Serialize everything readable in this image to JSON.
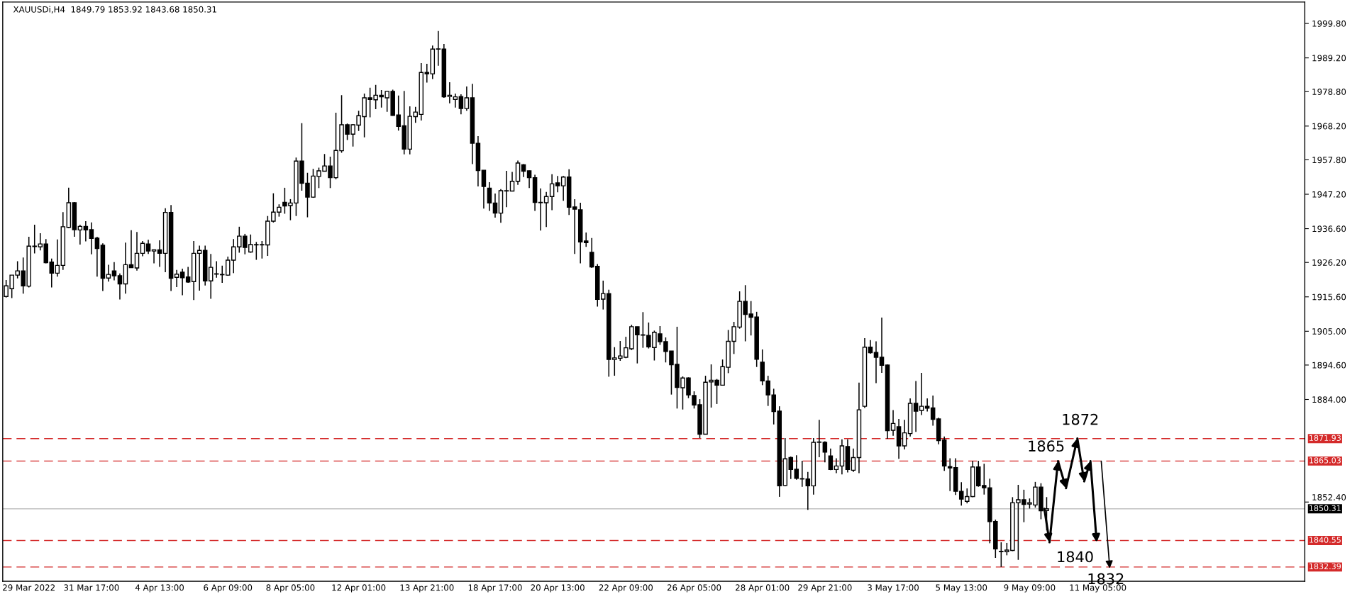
{
  "chart_data": {
    "type": "candlestick",
    "title": "XAUUSDi,H4  1849.79 1853.92 1843.68 1850.31",
    "categories": [
      null,
      null,
      null,
      null,
      "29 Mar 2022",
      null,
      null,
      null,
      null,
      null,
      null,
      null,
      null,
      null,
      null,
      "31 Mar 17:00",
      null,
      null,
      null,
      null,
      null,
      null,
      null,
      null,
      null,
      null,
      null,
      "4 Apr 13:00",
      null,
      null,
      null,
      null,
      null,
      null,
      null,
      null,
      null,
      null,
      null,
      "6 Apr 09:00",
      null,
      null,
      null,
      null,
      null,
      null,
      null,
      null,
      null,
      null,
      "8 Apr 05:00",
      null,
      null,
      null,
      null,
      null,
      null,
      null,
      null,
      null,
      null,
      null,
      "12 Apr 01:00",
      null,
      null,
      null,
      null,
      null,
      null,
      null,
      null,
      null,
      null,
      null,
      "13 Apr 21:00",
      null,
      null,
      null,
      null,
      null,
      null,
      null,
      null,
      null,
      null,
      null,
      "18 Apr 17:00",
      null,
      null,
      null,
      null,
      null,
      null,
      null,
      null,
      null,
      null,
      "20 Apr 13:00",
      null,
      null,
      null,
      null,
      null,
      null,
      null,
      null,
      null,
      null,
      null,
      "22 Apr 09:00",
      null,
      null,
      null,
      null,
      null,
      null,
      null,
      null,
      null,
      null,
      null,
      "26 Apr 05:00",
      null,
      null,
      null,
      null,
      null,
      null,
      null,
      null,
      null,
      null,
      null,
      "28 Apr 01:00",
      null,
      null,
      null,
      null,
      null,
      null,
      null,
      null,
      null,
      null,
      "29 Apr 21:00",
      null,
      null,
      null,
      null,
      null,
      null,
      null,
      null,
      null,
      null,
      null,
      "3 May 17:00",
      null,
      null,
      null,
      null,
      null,
      null,
      null,
      null,
      null,
      null,
      null,
      "5 May 13:00",
      null,
      null,
      null,
      null,
      null,
      null,
      null,
      null,
      null,
      null,
      null,
      "9 May 09:00",
      null,
      null,
      null,
      null,
      null,
      null,
      null,
      null,
      null,
      null,
      null,
      "11 May 05:00",
      null,
      null,
      null,
      null,
      null,
      null,
      null,
      null,
      null,
      null,
      null,
      null,
      null,
      null,
      null,
      null,
      null,
      null,
      null,
      null,
      null,
      null,
      null,
      null,
      null,
      null,
      null,
      null,
      null,
      null,
      null,
      null,
      null,
      null,
      null,
      null
    ],
    "ohlc": [
      [
        1915.7,
        1920.8,
        1915.4,
        1919.0
      ],
      [
        1918.1,
        1922.3,
        1915.2,
        1922.3
      ],
      [
        1922.3,
        1926.6,
        1921.3,
        1923.6
      ],
      [
        1923.6,
        1927.7,
        1916.6,
        1919.0
      ],
      [
        1918.9,
        1934.1,
        1918.5,
        1931.2
      ],
      [
        1931.2,
        1937.8,
        1929.0,
        1931.1
      ],
      [
        1931.0,
        1935.2,
        1929.9,
        1931.9
      ],
      [
        1931.9,
        1933.4,
        1925.9,
        1926.1
      ],
      [
        1926.3,
        1927.4,
        1918.5,
        1922.9
      ],
      [
        1922.9,
        1933.3,
        1921.8,
        1925.3
      ],
      [
        1925.3,
        1941.7,
        1923.9,
        1937.2
      ],
      [
        1937.0,
        1949.2,
        1936.8,
        1944.6
      ],
      [
        1944.6,
        1944.8,
        1934.1,
        1936.3
      ],
      [
        1936.2,
        1937.8,
        1931.7,
        1937.3
      ],
      [
        1937.3,
        1938.9,
        1932.7,
        1936.2
      ],
      [
        1936.3,
        1938.5,
        1928.7,
        1933.6
      ],
      [
        1933.7,
        1934.1,
        1921.8,
        1930.5
      ],
      [
        1931.5,
        1932.1,
        1917.4,
        1921.3
      ],
      [
        1921.4,
        1925.5,
        1920.3,
        1922.5
      ],
      [
        1923.6,
        1926.3,
        1920.7,
        1922.1
      ],
      [
        1922.1,
        1922.8,
        1914.8,
        1919.6
      ],
      [
        1919.6,
        1932.3,
        1916.6,
        1925.5
      ],
      [
        1925.5,
        1936.1,
        1924.6,
        1924.6
      ],
      [
        1924.5,
        1935.6,
        1923.7,
        1929.0
      ],
      [
        1929.0,
        1932.8,
        1928.1,
        1932.1
      ],
      [
        1931.9,
        1933.2,
        1928.8,
        1929.7
      ],
      [
        1929.7,
        1930.1,
        1925.9,
        1930.1
      ],
      [
        1930.1,
        1933.0,
        1924.8,
        1929.0
      ],
      [
        1929.0,
        1942.9,
        1923.2,
        1941.6
      ],
      [
        1941.6,
        1943.9,
        1917.4,
        1921.3
      ],
      [
        1921.6,
        1923.9,
        1918.6,
        1922.6
      ],
      [
        1923.2,
        1924.3,
        1916.1,
        1921.5
      ],
      [
        1921.7,
        1924.8,
        1919.9,
        1920.2
      ],
      [
        1920.3,
        1932.8,
        1914.6,
        1929.0
      ],
      [
        1929.0,
        1931.4,
        1917.5,
        1929.9
      ],
      [
        1929.9,
        1931.4,
        1919.1,
        1920.5
      ],
      [
        1920.5,
        1928.8,
        1915.0,
        1924.7
      ],
      [
        1922.6,
        1926.6,
        1921.5,
        1922.7
      ],
      [
        1922.4,
        1925.2,
        1919.9,
        1922.5
      ],
      [
        1922.3,
        1928.0,
        1922.1,
        1926.9
      ],
      [
        1926.9,
        1933.4,
        1922.9,
        1931.0
      ],
      [
        1931.0,
        1937.2,
        1929.2,
        1934.3
      ],
      [
        1934.3,
        1935.0,
        1928.7,
        1930.8
      ],
      [
        1929.4,
        1934.8,
        1929.2,
        1931.7
      ],
      [
        1931.6,
        1932.5,
        1927.0,
        1931.7
      ],
      [
        1931.7,
        1932.8,
        1927.4,
        1931.6
      ],
      [
        1931.6,
        1940.5,
        1928.2,
        1938.9
      ],
      [
        1938.9,
        1947.5,
        1938.5,
        1941.7
      ],
      [
        1941.7,
        1944.1,
        1940.3,
        1943.2
      ],
      [
        1944.7,
        1949.2,
        1941.2,
        1943.6
      ],
      [
        1943.7,
        1945.7,
        1939.2,
        1944.5
      ],
      [
        1944.5,
        1958.5,
        1940.5,
        1957.4
      ],
      [
        1957.4,
        1969.1,
        1948.3,
        1950.6
      ],
      [
        1950.6,
        1953.8,
        1940.1,
        1946.3
      ],
      [
        1946.3,
        1955.0,
        1946.1,
        1952.8
      ],
      [
        1952.7,
        1955.4,
        1949.1,
        1954.4
      ],
      [
        1954.3,
        1959.6,
        1954.2,
        1955.9
      ],
      [
        1955.9,
        1958.8,
        1949.1,
        1952.3
      ],
      [
        1952.3,
        1972.3,
        1951.8,
        1960.7
      ],
      [
        1960.6,
        1977.7,
        1960.0,
        1968.6
      ],
      [
        1968.6,
        1969.0,
        1963.9,
        1965.7
      ],
      [
        1965.7,
        1968.8,
        1961.9,
        1968.6
      ],
      [
        1968.5,
        1972.9,
        1966.7,
        1971.4
      ],
      [
        1971.1,
        1978.2,
        1964.7,
        1976.9
      ],
      [
        1976.9,
        1980.0,
        1970.9,
        1976.4
      ],
      [
        1976.3,
        1980.9,
        1973.4,
        1977.7
      ],
      [
        1977.7,
        1979.3,
        1973.9,
        1977.2
      ],
      [
        1976.9,
        1979.0,
        1972.6,
        1978.9
      ],
      [
        1978.9,
        1979.4,
        1971.4,
        1971.5
      ],
      [
        1971.6,
        1977.6,
        1966.8,
        1968.1
      ],
      [
        1968.3,
        1979.0,
        1959.5,
        1961.1
      ],
      [
        1961.1,
        1974.3,
        1959.5,
        1971.2
      ],
      [
        1971.1,
        1974.1,
        1969.2,
        1972.5
      ],
      [
        1971.8,
        1987.6,
        1969.9,
        1984.7
      ],
      [
        1984.7,
        1987.4,
        1981.6,
        1984.3
      ],
      [
        1984.3,
        1993.0,
        1982.7,
        1991.9
      ],
      [
        1991.9,
        1997.5,
        1986.8,
        1992.0
      ],
      [
        1991.9,
        1993.5,
        1976.9,
        1977.2
      ],
      [
        1977.3,
        1981.7,
        1975.2,
        1977.7
      ],
      [
        1976.4,
        1978.2,
        1973.9,
        1977.2
      ],
      [
        1977.3,
        1978.0,
        1971.8,
        1973.6
      ],
      [
        1973.6,
        1980.4,
        1972.9,
        1976.9
      ],
      [
        1976.9,
        1981.2,
        1956.5,
        1962.9
      ],
      [
        1962.9,
        1965.1,
        1949.6,
        1954.5
      ],
      [
        1954.6,
        1954.6,
        1942.8,
        1949.6
      ],
      [
        1949.1,
        1950.9,
        1942.1,
        1944.5
      ],
      [
        1944.5,
        1947.4,
        1940.0,
        1941.4
      ],
      [
        1941.4,
        1948.8,
        1938.4,
        1948.3
      ],
      [
        1948.3,
        1954.4,
        1943.2,
        1948.2
      ],
      [
        1948.2,
        1954.1,
        1948.1,
        1951.2
      ],
      [
        1951.2,
        1957.6,
        1950.1,
        1956.8
      ],
      [
        1956.3,
        1956.5,
        1952.5,
        1954.3
      ],
      [
        1954.4,
        1954.5,
        1949.1,
        1952.3
      ],
      [
        1952.3,
        1953.2,
        1942.1,
        1944.7
      ],
      [
        1944.7,
        1949.0,
        1936.0,
        1944.6
      ],
      [
        1944.6,
        1947.9,
        1937.1,
        1946.5
      ],
      [
        1946.5,
        1953.4,
        1942.3,
        1950.4
      ],
      [
        1950.7,
        1952.8,
        1947.8,
        1949.8
      ],
      [
        1949.8,
        1952.8,
        1945.2,
        1952.5
      ],
      [
        1952.5,
        1954.9,
        1940.8,
        1943.2
      ],
      [
        1943.3,
        1945.7,
        1928.8,
        1942.6
      ],
      [
        1942.4,
        1944.6,
        1925.9,
        1932.5
      ],
      [
        1932.8,
        1935.4,
        1931.0,
        1932.3
      ],
      [
        1929.3,
        1933.7,
        1924.5,
        1924.8
      ],
      [
        1925.0,
        1925.7,
        1912.6,
        1914.8
      ],
      [
        1914.9,
        1920.6,
        1911.7,
        1916.6
      ],
      [
        1916.6,
        1917.8,
        1891.0,
        1896.3
      ],
      [
        1896.3,
        1900.1,
        1891.3,
        1896.8
      ],
      [
        1896.7,
        1902.0,
        1895.9,
        1897.4
      ],
      [
        1897.0,
        1903.3,
        1896.7,
        1899.9
      ],
      [
        1899.6,
        1907.0,
        1899.2,
        1906.4
      ],
      [
        1906.4,
        1906.4,
        1895.1,
        1903.9
      ],
      [
        1903.9,
        1910.9,
        1899.9,
        1903.8
      ],
      [
        1903.7,
        1907.7,
        1899.7,
        1900.2
      ],
      [
        1900.0,
        1905.2,
        1896.0,
        1904.7
      ],
      [
        1904.2,
        1906.6,
        1900.8,
        1901.8
      ],
      [
        1901.8,
        1903.1,
        1895.4,
        1898.8
      ],
      [
        1898.9,
        1898.9,
        1885.5,
        1894.7
      ],
      [
        1894.8,
        1906.4,
        1881.2,
        1887.7
      ],
      [
        1887.6,
        1891.1,
        1880.9,
        1890.6
      ],
      [
        1890.6,
        1890.8,
        1884.4,
        1885.4
      ],
      [
        1885.2,
        1886.5,
        1881.2,
        1882.3
      ],
      [
        1882.4,
        1884.1,
        1872.1,
        1873.3
      ],
      [
        1873.3,
        1891.3,
        1873.2,
        1889.3
      ],
      [
        1889.4,
        1894.8,
        1881.5,
        1889.9
      ],
      [
        1889.9,
        1890.3,
        1882.6,
        1888.4
      ],
      [
        1888.4,
        1896.3,
        1888.3,
        1894.1
      ],
      [
        1893.9,
        1905.4,
        1892.1,
        1901.9
      ],
      [
        1901.9,
        1907.9,
        1898.0,
        1906.4
      ],
      [
        1906.3,
        1917.3,
        1905.8,
        1914.2
      ],
      [
        1914.2,
        1919.2,
        1901.9,
        1910.2
      ],
      [
        1910.3,
        1914.3,
        1903.7,
        1909.3
      ],
      [
        1909.4,
        1911.0,
        1894.0,
        1896.4
      ],
      [
        1895.5,
        1899.4,
        1888.4,
        1889.7
      ],
      [
        1889.7,
        1891.3,
        1882.0,
        1885.4
      ],
      [
        1885.4,
        1887.3,
        1876.3,
        1880.3
      ],
      [
        1880.4,
        1881.9,
        1854.0,
        1857.4
      ],
      [
        1857.5,
        1872.1,
        1857.3,
        1865.7
      ],
      [
        1866.1,
        1866.4,
        1859.5,
        1862.4
      ],
      [
        1862.5,
        1866.8,
        1859.3,
        1859.7
      ],
      [
        1859.6,
        1865.1,
        1857.1,
        1859.5
      ],
      [
        1859.5,
        1861.7,
        1850.0,
        1857.4
      ],
      [
        1857.4,
        1872.1,
        1854.7,
        1870.8
      ],
      [
        1870.8,
        1877.7,
        1866.2,
        1870.9
      ],
      [
        1870.8,
        1871.1,
        1864.6,
        1867.8
      ],
      [
        1866.6,
        1868.9,
        1862.2,
        1862.4
      ],
      [
        1862.4,
        1865.9,
        1861.3,
        1863.5
      ],
      [
        1863.5,
        1871.7,
        1860.9,
        1869.7
      ],
      [
        1869.5,
        1871.7,
        1861.5,
        1862.4
      ],
      [
        1862.2,
        1868.9,
        1861.7,
        1866.1
      ],
      [
        1866.1,
        1889.2,
        1861.3,
        1880.8
      ],
      [
        1881.9,
        1902.9,
        1881.4,
        1900.1
      ],
      [
        1900.1,
        1902.3,
        1898.1,
        1898.4
      ],
      [
        1898.5,
        1901.9,
        1889.0,
        1897.0
      ],
      [
        1897.0,
        1909.2,
        1892.2,
        1894.5
      ],
      [
        1894.6,
        1894.8,
        1871.9,
        1874.4
      ],
      [
        1874.5,
        1880.7,
        1872.8,
        1876.6
      ],
      [
        1875.6,
        1878.0,
        1865.7,
        1869.7
      ],
      [
        1869.7,
        1877.7,
        1868.6,
        1873.7
      ],
      [
        1873.5,
        1884.3,
        1872.6,
        1882.8
      ],
      [
        1882.8,
        1889.7,
        1874.0,
        1880.4
      ],
      [
        1880.6,
        1892.2,
        1879.2,
        1881.9
      ],
      [
        1881.9,
        1884.3,
        1880.3,
        1881.3
      ],
      [
        1881.4,
        1885.2,
        1875.9,
        1877.9
      ],
      [
        1878.0,
        1878.4,
        1870.2,
        1871.3
      ],
      [
        1871.5,
        1872.6,
        1862.0,
        1863.5
      ],
      [
        1863.3,
        1865.9,
        1855.8,
        1862.9
      ],
      [
        1863.0,
        1865.9,
        1854.6,
        1855.7
      ],
      [
        1855.7,
        1858.5,
        1851.3,
        1853.3
      ],
      [
        1852.6,
        1856.6,
        1852.0,
        1854.1
      ],
      [
        1854.1,
        1865.1,
        1853.9,
        1863.2
      ],
      [
        1863.2,
        1865.1,
        1857.1,
        1857.4
      ],
      [
        1857.5,
        1864.2,
        1854.7,
        1856.8
      ],
      [
        1856.8,
        1859.6,
        1839.7,
        1846.4
      ],
      [
        1846.4,
        1847.0,
        1835.2,
        1838.0
      ],
      [
        1837.1,
        1840.0,
        1832.4,
        1837.2
      ],
      [
        1837.1,
        1839.8,
        1836.0,
        1837.6
      ],
      [
        1837.5,
        1853.9,
        1837.3,
        1852.2
      ],
      [
        1852.2,
        1857.7,
        1834.6,
        1853.1
      ],
      [
        1853.1,
        1856.2,
        1846.2,
        1851.7
      ],
      [
        1851.8,
        1853.5,
        1850.4,
        1852.2
      ],
      [
        1851.5,
        1858.6,
        1850.7,
        1857.0
      ],
      [
        1857.0,
        1858.2,
        1847.1,
        1849.7
      ],
      [
        1849.79,
        1853.92,
        1843.68,
        1850.31
      ],
      null,
      null,
      null,
      null,
      null,
      null,
      null,
      null,
      null,
      null,
      null,
      null,
      null,
      null,
      null,
      null,
      null,
      null,
      null,
      null,
      null,
      null,
      null,
      null,
      null,
      null,
      null,
      null,
      null,
      null,
      null,
      null,
      null,
      null,
      null,
      null,
      null,
      null,
      null,
      null,
      null,
      null,
      null,
      null,
      null
    ],
    "ylim": [
      1828.0,
      2006.4
    ],
    "yticks": [
      {
        "value": 1999.8,
        "label": "1999.80"
      },
      {
        "value": 1989.2,
        "label": "1989.20"
      },
      {
        "value": 1978.8,
        "label": "1978.80"
      },
      {
        "value": 1968.2,
        "label": "1968.20"
      },
      {
        "value": 1957.8,
        "label": "1957.80"
      },
      {
        "value": 1947.2,
        "label": "1947.20"
      },
      {
        "value": 1936.6,
        "label": "1936.60"
      },
      {
        "value": 1926.2,
        "label": "1926.20"
      },
      {
        "value": 1915.6,
        "label": "1915.60"
      },
      {
        "value": 1905,
        "label": "1905.00"
      },
      {
        "value": 1894.6,
        "label": "1894.60"
      },
      {
        "value": 1884,
        "label": "1884.00"
      },
      {
        "value": 1852.4,
        "label": "1852.40"
      }
    ],
    "ref_lines": [
      {
        "axis": "y",
        "value": 1871.93,
        "label": "1871.93",
        "color": "#d42a2a",
        "line_style": "dashed"
      },
      {
        "axis": "y",
        "value": 1865.03,
        "label": "1865.03",
        "color": "#d42a2a",
        "line_style": "dashed"
      },
      {
        "axis": "y",
        "value": 1850.31,
        "label": "1850.31",
        "color": "#c0c0c0",
        "line_style": "solid"
      },
      {
        "axis": "y",
        "value": 1840.55,
        "label": "1840.55",
        "color": "#d42a2a",
        "line_style": "dashed"
      },
      {
        "axis": "y",
        "value": 1832.39,
        "label": "1832.39",
        "color": "#d42a2a",
        "line_style": "dashed"
      }
    ],
    "annotations": [
      {
        "text": "1872",
        "y": 1872
      },
      {
        "text": "1865",
        "y": 1865
      },
      {
        "text": "1840",
        "y": 1840
      },
      {
        "text": "1832",
        "y": 1832
      }
    ]
  }
}
